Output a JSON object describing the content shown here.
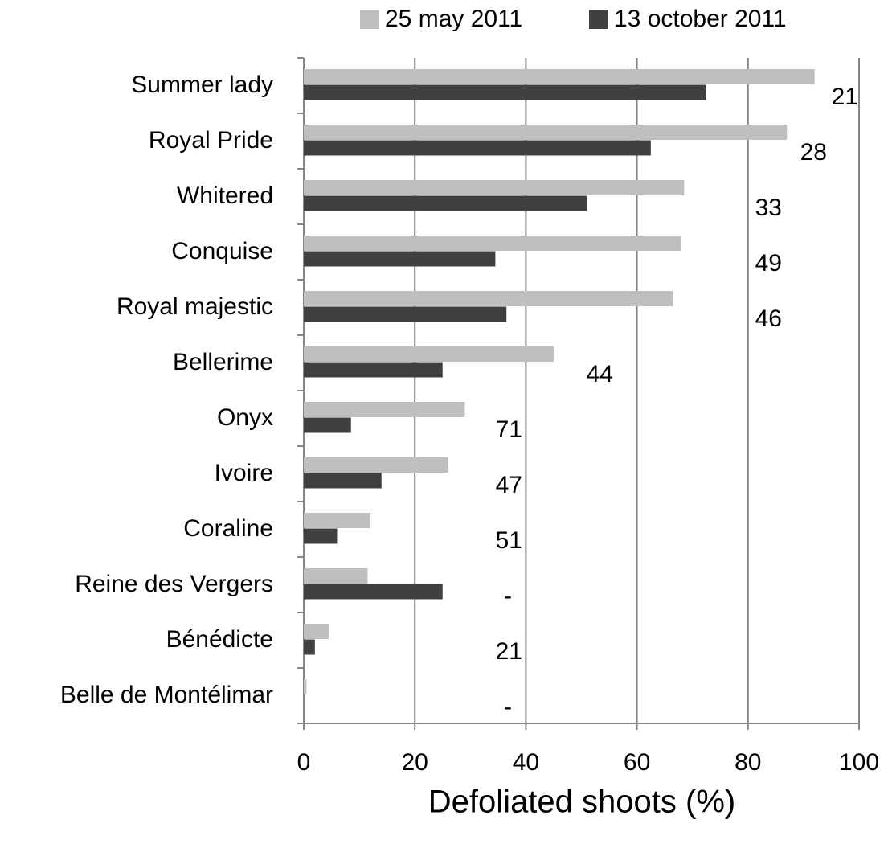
{
  "chart_data": {
    "type": "bar",
    "orientation": "horizontal",
    "x_label": "Defoliated shoots (%)",
    "categories": [
      "Summer lady",
      "Royal Pride",
      "Whitered",
      "Conquise",
      "Royal majestic",
      "Bellerime",
      "Onyx",
      "Ivoire",
      "Coraline",
      "Reine des Vergers",
      "Bénédicte",
      "Belle de Montélimar"
    ],
    "series": [
      {
        "name": "25 may 2011",
        "color": "#bfbfbf",
        "values": [
          92,
          87,
          68.5,
          68,
          66.5,
          45,
          29,
          26,
          12,
          11.5,
          4.5,
          0.5
        ]
      },
      {
        "name": "13 october 2011",
        "color": "#404040",
        "values": [
          72.5,
          62.5,
          51,
          34.5,
          36.5,
          25,
          8.5,
          14,
          6,
          25,
          2,
          0
        ]
      }
    ],
    "annotations": [
      "21",
      "28",
      "33",
      "49",
      "46",
      "44",
      "71",
      "47",
      "51",
      "-",
      "21",
      "-"
    ],
    "xlim": [
      0,
      100
    ],
    "xticks": [
      0,
      20,
      40,
      60,
      80,
      100
    ],
    "grid": true,
    "legend": "top"
  }
}
